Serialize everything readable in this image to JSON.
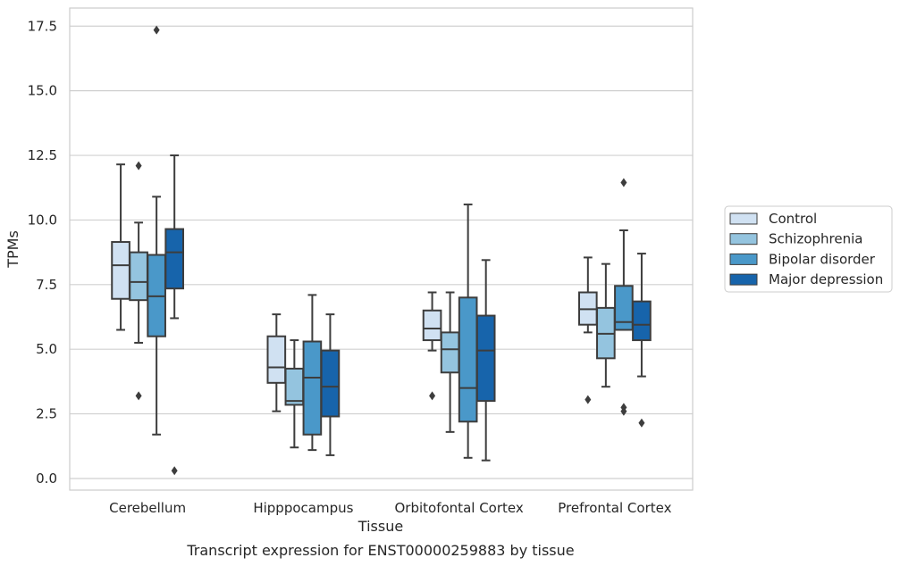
{
  "chart_data": {
    "type": "box",
    "title": "",
    "caption": "Transcript expression for ENST00000259883 by tissue",
    "xlabel": "Tissue",
    "ylabel": "TPMs",
    "ylim": [
      -0.45,
      18.2
    ],
    "yticks": [
      0.0,
      2.5,
      5.0,
      7.5,
      10.0,
      12.5,
      15.0,
      17.5
    ],
    "ytick_labels": [
      "0.0",
      "2.5",
      "5.0",
      "7.5",
      "10.0",
      "12.5",
      "15.0",
      "17.5"
    ],
    "grid": "horizontal",
    "legend_position": "right",
    "categories": [
      "Cerebellum",
      "Hipppocampus",
      "Orbitofontal Cortex",
      "Prefrontal Cortex"
    ],
    "series": [
      {
        "name": "Control",
        "color": "#d0e1f2",
        "boxes": [
          {
            "whisker_low": 5.75,
            "q1": 6.95,
            "median": 8.25,
            "q3": 9.15,
            "whisker_high": 12.15,
            "outliers": []
          },
          {
            "whisker_low": 2.6,
            "q1": 3.7,
            "median": 4.3,
            "q3": 5.5,
            "whisker_high": 6.35,
            "outliers": []
          },
          {
            "whisker_low": 4.95,
            "q1": 5.35,
            "median": 5.8,
            "q3": 6.5,
            "whisker_high": 7.2,
            "outliers": [
              3.2
            ]
          },
          {
            "whisker_low": 5.65,
            "q1": 5.95,
            "median": 6.55,
            "q3": 7.2,
            "whisker_high": 8.55,
            "outliers": [
              3.05
            ]
          }
        ]
      },
      {
        "name": "Schizophrenia",
        "color": "#94c4df",
        "boxes": [
          {
            "whisker_low": 5.25,
            "q1": 6.9,
            "median": 7.6,
            "q3": 8.75,
            "whisker_high": 9.9,
            "outliers": [
              12.1,
              3.2
            ]
          },
          {
            "whisker_low": 1.2,
            "q1": 2.85,
            "median": 3.0,
            "q3": 4.25,
            "whisker_high": 5.35,
            "outliers": []
          },
          {
            "whisker_low": 1.8,
            "q1": 4.1,
            "median": 5.0,
            "q3": 5.65,
            "whisker_high": 7.2,
            "outliers": []
          },
          {
            "whisker_low": 3.55,
            "q1": 4.65,
            "median": 5.6,
            "q3": 6.6,
            "whisker_high": 8.3,
            "outliers": []
          }
        ]
      },
      {
        "name": "Bipolar disorder",
        "color": "#4a98c9",
        "boxes": [
          {
            "whisker_low": 1.7,
            "q1": 5.5,
            "median": 7.05,
            "q3": 8.65,
            "whisker_high": 10.9,
            "outliers": [
              17.35
            ]
          },
          {
            "whisker_low": 1.1,
            "q1": 1.7,
            "median": 3.9,
            "q3": 5.3,
            "whisker_high": 7.1,
            "outliers": []
          },
          {
            "whisker_low": 0.8,
            "q1": 2.2,
            "median": 3.5,
            "q3": 7.0,
            "whisker_high": 10.6,
            "outliers": []
          },
          {
            "whisker_low": 5.75,
            "q1": 5.75,
            "median": 6.05,
            "q3": 7.45,
            "whisker_high": 9.6,
            "outliers": [
              11.45,
              2.75,
              2.6
            ]
          }
        ]
      },
      {
        "name": "Major depression",
        "color": "#1764ab",
        "boxes": [
          {
            "whisker_low": 6.2,
            "q1": 7.35,
            "median": 8.75,
            "q3": 9.65,
            "whisker_high": 12.5,
            "outliers": [
              0.3
            ]
          },
          {
            "whisker_low": 0.9,
            "q1": 2.4,
            "median": 3.55,
            "q3": 4.95,
            "whisker_high": 6.35,
            "outliers": []
          },
          {
            "whisker_low": 0.7,
            "q1": 3.0,
            "median": 4.95,
            "q3": 6.3,
            "whisker_high": 8.45,
            "outliers": []
          },
          {
            "whisker_low": 3.95,
            "q1": 5.35,
            "median": 5.95,
            "q3": 6.85,
            "whisker_high": 8.7,
            "outliers": [
              2.15
            ]
          }
        ]
      }
    ]
  }
}
